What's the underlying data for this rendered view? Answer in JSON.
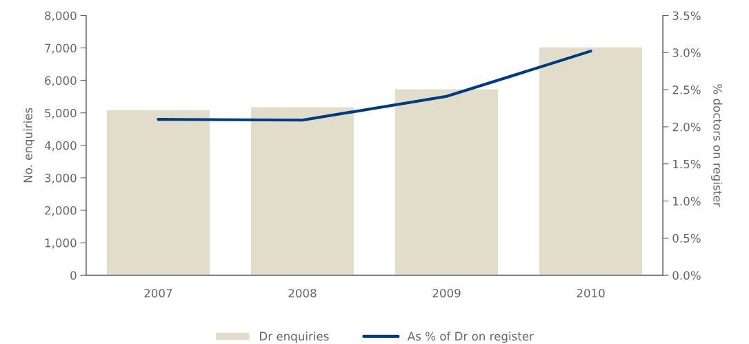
{
  "chart_data": {
    "type": "bar",
    "categories": [
      "2007",
      "2008",
      "2009",
      "2010"
    ],
    "series": [
      {
        "name": "Dr enquiries",
        "color": "#e2dccb",
        "values": [
          5100,
          5190,
          5740,
          7030
        ]
      },
      {
        "name": "As % of Dr on register",
        "type": "line",
        "axis": "y2",
        "color": "#003a80",
        "values": [
          2.1,
          2.09,
          2.41,
          3.02
        ]
      }
    ],
    "ylabel": "No. enquiries",
    "y2label": "% doctors on register",
    "ylim": [
      0,
      8000
    ],
    "yticks": [
      {
        "value": 0,
        "label": "0"
      },
      {
        "value": 1000,
        "label": "1,000"
      },
      {
        "value": 2000,
        "label": "2,000"
      },
      {
        "value": 3000,
        "label": "3,000"
      },
      {
        "value": 4000,
        "label": "4,000"
      },
      {
        "value": 5000,
        "label": "5,000"
      },
      {
        "value": 6000,
        "label": "6,000"
      },
      {
        "value": 7000,
        "label": "7,000"
      },
      {
        "value": 8000,
        "label": "8,000"
      }
    ],
    "y2lim": [
      0,
      3.5
    ],
    "y2ticks": [
      {
        "value": 0,
        "label": "0.0%"
      },
      {
        "value": 0.5,
        "label": "0.5%"
      },
      {
        "value": 1.0,
        "label": "1.0%"
      },
      {
        "value": 1.5,
        "label": "1.5%"
      },
      {
        "value": 2.0,
        "label": "2.0%"
      },
      {
        "value": 2.5,
        "label": "2.5%"
      },
      {
        "value": 3.0,
        "label": "3.0%"
      },
      {
        "value": 3.5,
        "label": "3.5%"
      }
    ],
    "legend": "bottom",
    "grid": false,
    "marker": "none",
    "line_style": "solid"
  }
}
